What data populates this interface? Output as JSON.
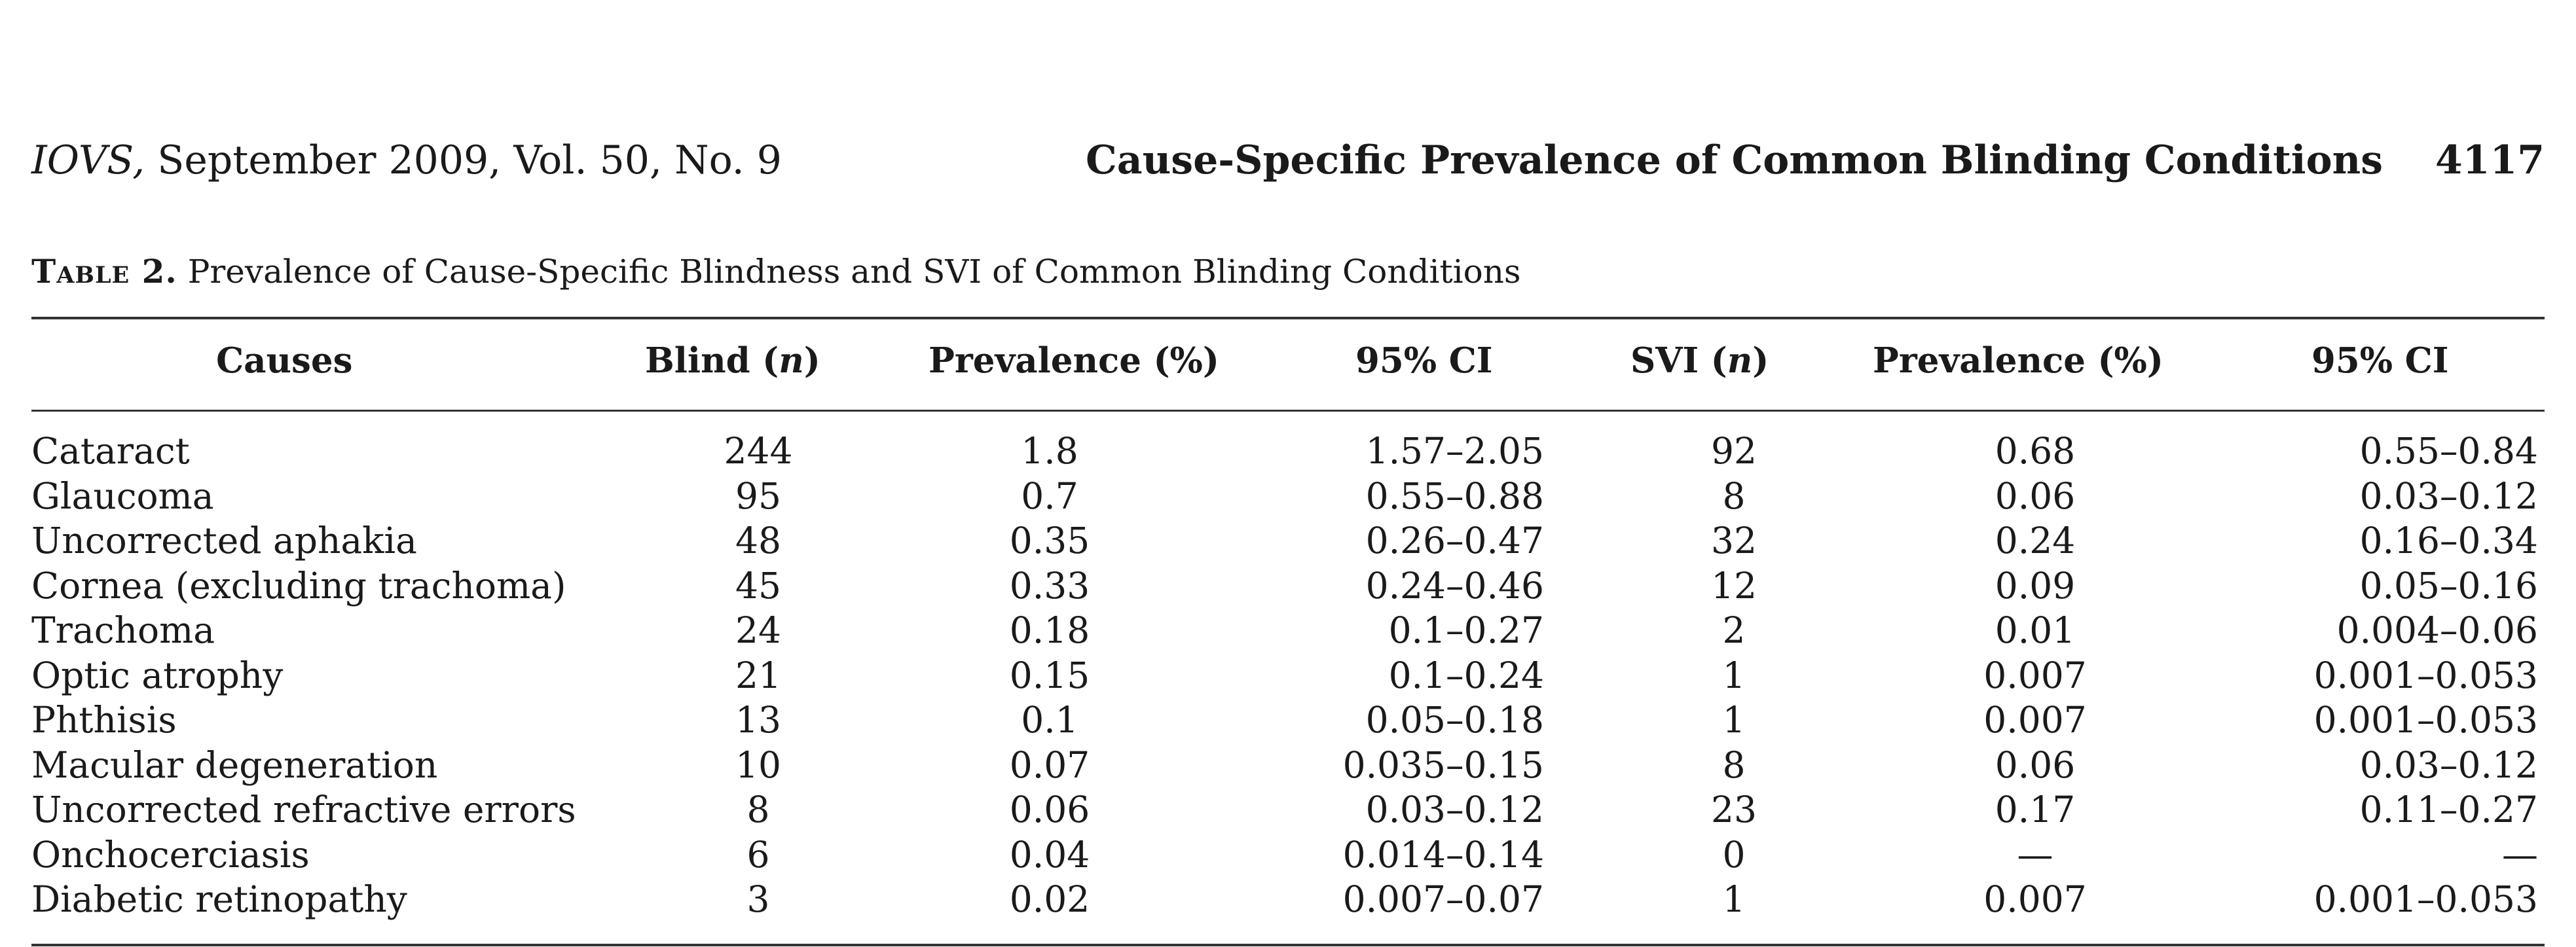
{
  "header": {
    "journal_italic": "IOVS,",
    "journal_rest": "September 2009, Vol. 50, No. 9",
    "running_title": "Cause-Specific Prevalence of Common Blinding Conditions",
    "page_number": "4117"
  },
  "caption": {
    "label": "Table 2.",
    "text": "Prevalence of Cause-Specific Blindness and SVI of Common Blinding Conditions"
  },
  "table": {
    "headers": {
      "causes": "Causes",
      "blind_pre": "Blind (",
      "blind_n": "n",
      "blind_post": ")",
      "prev1": "Prevalence (%)",
      "ci1": "95% CI",
      "svi_pre": "SVI (",
      "svi_n": "n",
      "svi_post": ")",
      "prev2": "Prevalence (%)",
      "ci2": "95% CI"
    },
    "rows": [
      [
        "Cataract",
        "244",
        "1.8",
        "1.57–2.05",
        "92",
        "0.68",
        "0.55–0.84"
      ],
      [
        "Glaucoma",
        "95",
        "0.7",
        "0.55–0.88",
        "8",
        "0.06",
        "0.03–0.12"
      ],
      [
        "Uncorrected aphakia",
        "48",
        "0.35",
        "0.26–0.47",
        "32",
        "0.24",
        "0.16–0.34"
      ],
      [
        "Cornea (excluding trachoma)",
        "45",
        "0.33",
        "0.24–0.46",
        "12",
        "0.09",
        "0.05–0.16"
      ],
      [
        "Trachoma",
        "24",
        "0.18",
        "0.1–0.27",
        "2",
        "0.01",
        "0.004–0.06"
      ],
      [
        "Optic atrophy",
        "21",
        "0.15",
        "0.1–0.24",
        "1",
        "0.007",
        "0.001–0.053"
      ],
      [
        "Phthisis",
        "13",
        "0.1",
        "0.05–0.18",
        "1",
        "0.007",
        "0.001–0.053"
      ],
      [
        "Macular degeneration",
        "10",
        "0.07",
        "0.035–0.15",
        "8",
        "0.06",
        "0.03–0.12"
      ],
      [
        "Uncorrected refractive errors",
        "8",
        "0.06",
        "0.03–0.12",
        "23",
        "0.17",
        "0.11–0.27"
      ],
      [
        "Onchocerciasis",
        "6",
        "0.04",
        "0.014–0.14",
        "0",
        "—",
        "—"
      ],
      [
        "Diabetic retinopathy",
        "3",
        "0.02",
        "0.007–0.07",
        "1",
        "0.007",
        "0.001–0.053"
      ]
    ]
  }
}
